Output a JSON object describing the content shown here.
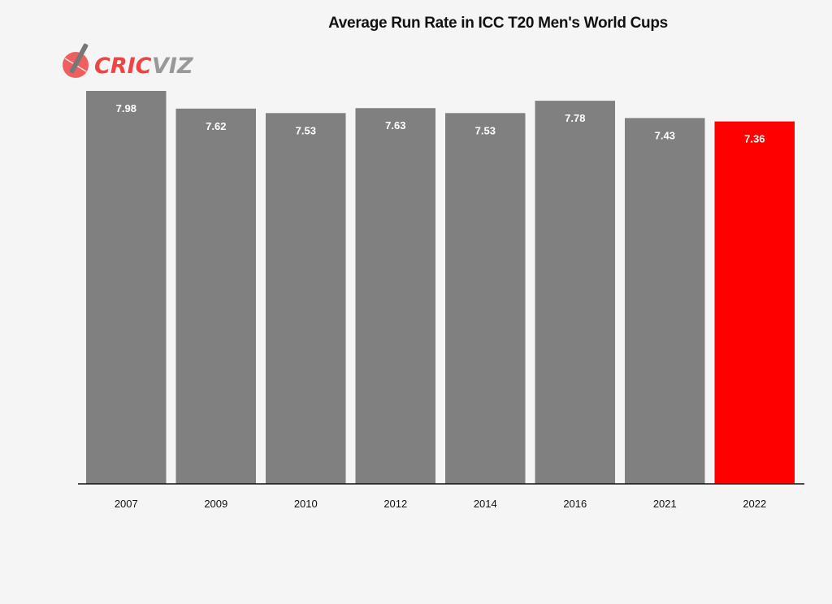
{
  "brand": {
    "logo_text_a": "CRIC",
    "logo_text_b": "VIZ",
    "accent": "#ee4444",
    "secondary": "#999999",
    "icon": "cricket-bat-ball-icon"
  },
  "chart_data": {
    "type": "bar",
    "title": "Average Run Rate in ICC T20 Men's World Cups",
    "xlabel": "",
    "ylabel": "",
    "categories": [
      "2007",
      "2009",
      "2010",
      "2012",
      "2014",
      "2016",
      "2021",
      "2022"
    ],
    "values": [
      7.98,
      7.62,
      7.53,
      7.63,
      7.53,
      7.78,
      7.43,
      7.36
    ],
    "value_labels": [
      "7.98",
      "7.62",
      "7.53",
      "7.63",
      "7.53",
      "7.78",
      "7.43",
      "7.36"
    ],
    "colors": [
      "#808080",
      "#808080",
      "#808080",
      "#808080",
      "#808080",
      "#808080",
      "#808080",
      "#ff0000"
    ],
    "ylim": [
      0,
      7.98
    ],
    "grid": false,
    "legend": "none"
  }
}
